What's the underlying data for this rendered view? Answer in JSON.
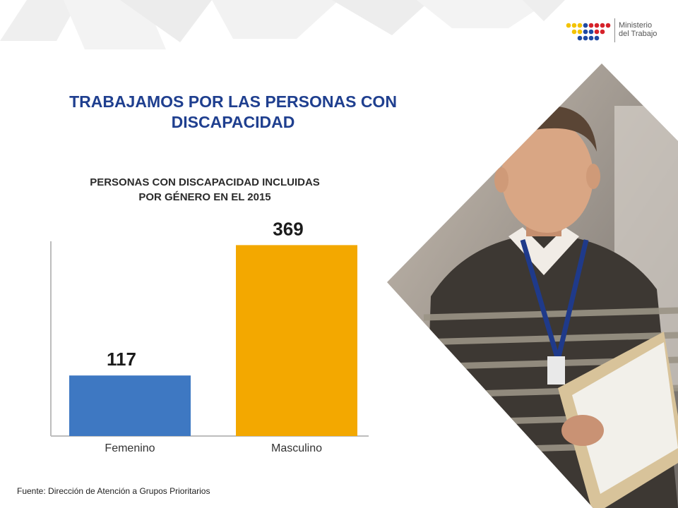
{
  "header": {
    "logo": {
      "line1": "Ministerio",
      "line2": "del Trabajo"
    }
  },
  "slide": {
    "title_line1": "TRABAJAMOS POR LAS PERSONAS CON",
    "title_line2": "DISCAPACIDAD",
    "source": "Fuente: Dirección de Atención a Grupos Prioritarios"
  },
  "colors": {
    "title": "#1f3f8f",
    "bar_femenino": "#3e78c2",
    "bar_masculino": "#f3a800",
    "axis": "#bdbdbd"
  },
  "photo": {
    "description_icon": "person-reading-folder-photo"
  },
  "chart_data": {
    "type": "bar",
    "title_line1": "PERSONAS CON DISCAPACIDAD INCLUIDAS",
    "title_line2": "POR GÉNERO EN EL 2015",
    "categories": [
      "Femenino",
      "Masculino"
    ],
    "values": [
      117,
      369
    ],
    "value_labels": [
      "117",
      "369"
    ],
    "colors": [
      "#3e78c2",
      "#f3a800"
    ],
    "ylim": [
      0,
      390
    ],
    "grid": false,
    "legend": "none"
  }
}
